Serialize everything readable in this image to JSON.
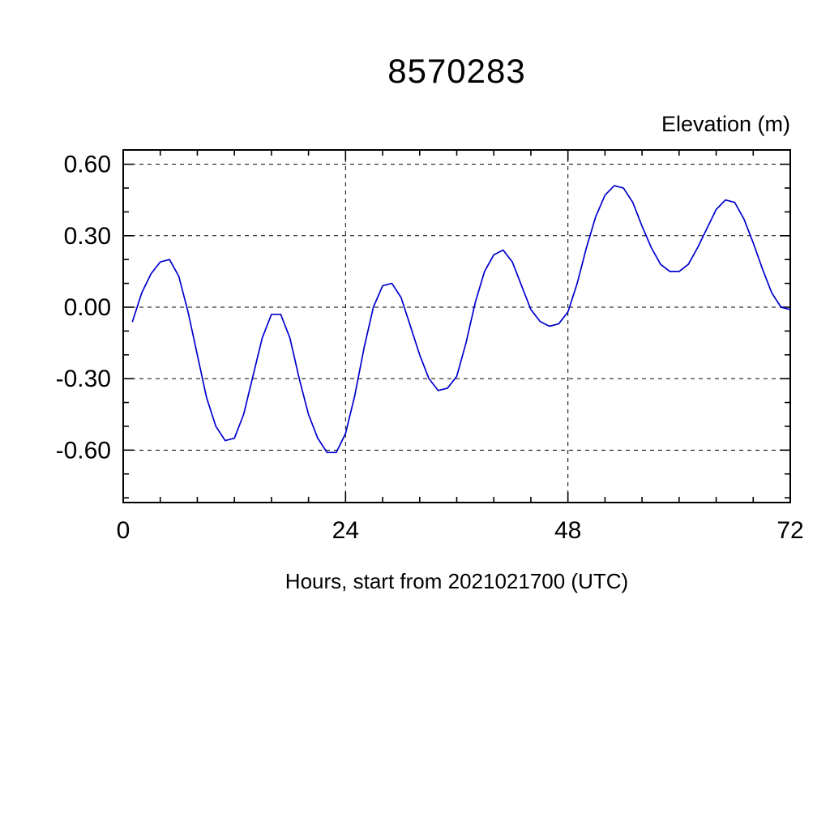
{
  "page": {
    "background": "#ffffff"
  },
  "chart_data": {
    "type": "line",
    "title": "8570283",
    "ylabel": "Elevation (m)",
    "xlabel": "Hours, start from 2021021700 (UTC)",
    "grid": true,
    "grid_style": "dashed",
    "legend": "none",
    "axis_color": "#000000",
    "xlim": [
      0,
      72
    ],
    "ylim": [
      -0.82,
      0.66
    ],
    "xticks": [
      0,
      24,
      48,
      72
    ],
    "xtick_labels": [
      "0",
      "24",
      "48",
      "72"
    ],
    "yticks": [
      -0.6,
      -0.3,
      0.0,
      0.3,
      0.6
    ],
    "ytick_labels": [
      "-0.60",
      "-0.30",
      "0.00",
      "0.30",
      "0.60"
    ],
    "x_minor_step": 4,
    "y_minor_step": 0.1,
    "x": [
      1,
      2,
      3,
      4,
      5,
      6,
      7,
      8,
      9,
      10,
      11,
      12,
      13,
      14,
      15,
      16,
      17,
      18,
      19,
      20,
      21,
      22,
      23,
      24,
      25,
      26,
      27,
      28,
      29,
      30,
      31,
      32,
      33,
      34,
      35,
      36,
      37,
      38,
      39,
      40,
      41,
      42,
      43,
      44,
      45,
      46,
      47,
      48,
      49,
      50,
      51,
      52,
      53,
      54,
      55,
      56,
      57,
      58,
      59,
      60,
      61,
      62,
      63,
      64,
      65,
      66,
      67,
      68,
      69,
      70,
      71,
      72
    ],
    "series": [
      {
        "name": "elevation",
        "color": "#0000cd",
        "values": [
          -0.06,
          0.06,
          0.14,
          0.19,
          0.2,
          0.13,
          -0.02,
          -0.2,
          -0.38,
          -0.5,
          -0.56,
          -0.55,
          -0.45,
          -0.29,
          -0.13,
          -0.03,
          -0.03,
          -0.13,
          -0.3,
          -0.45,
          -0.55,
          -0.61,
          -0.61,
          -0.53,
          -0.37,
          -0.17,
          0.0,
          0.09,
          0.1,
          0.04,
          -0.08,
          -0.2,
          -0.3,
          -0.35,
          -0.34,
          -0.29,
          -0.15,
          0.02,
          0.15,
          0.22,
          0.24,
          0.19,
          0.09,
          -0.01,
          -0.06,
          -0.08,
          -0.07,
          -0.02,
          0.1,
          0.25,
          0.38,
          0.47,
          0.51,
          0.5,
          0.44,
          0.34,
          0.25,
          0.18,
          0.15,
          0.15,
          0.18,
          0.25,
          0.33,
          0.41,
          0.45,
          0.44,
          0.37,
          0.27,
          0.16,
          0.06,
          0.0,
          -0.01
        ]
      }
    ]
  }
}
